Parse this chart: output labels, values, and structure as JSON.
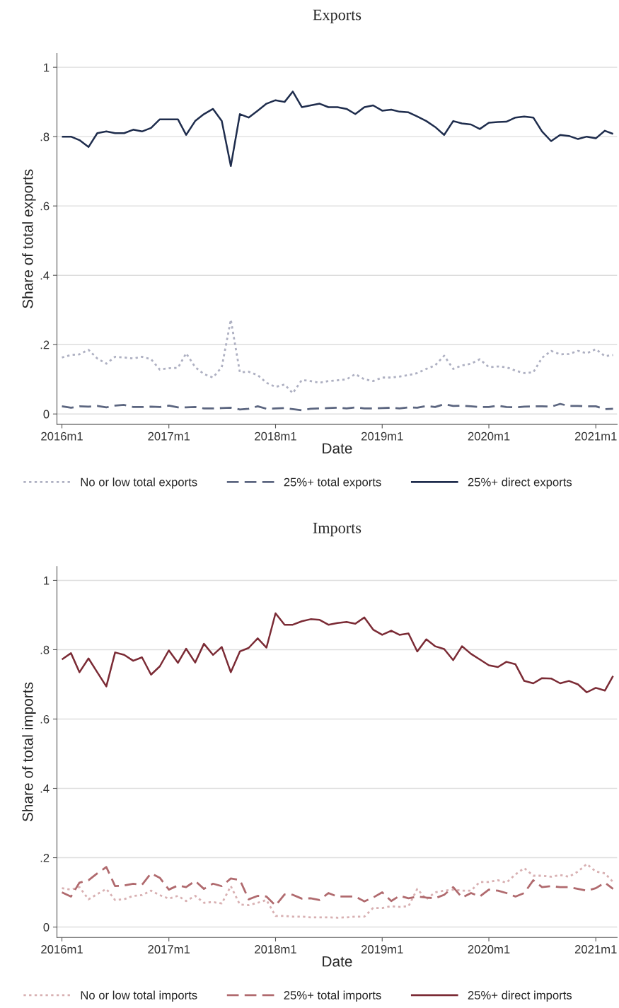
{
  "chart_data": [
    {
      "type": "line",
      "title": "Exports",
      "xlabel": "Date",
      "ylabel": "Share of total exports",
      "x": [
        "2016-01",
        "2016-02",
        "2016-03",
        "2016-04",
        "2016-05",
        "2016-06",
        "2016-07",
        "2016-08",
        "2016-09",
        "2016-10",
        "2016-11",
        "2016-12",
        "2017-01",
        "2017-02",
        "2017-03",
        "2017-04",
        "2017-05",
        "2017-06",
        "2017-07",
        "2017-08",
        "2017-09",
        "2017-10",
        "2017-11",
        "2017-12",
        "2018-01",
        "2018-02",
        "2018-03",
        "2018-04",
        "2018-05",
        "2018-06",
        "2018-07",
        "2018-08",
        "2018-09",
        "2018-10",
        "2018-11",
        "2018-12",
        "2019-01",
        "2019-02",
        "2019-03",
        "2019-04",
        "2019-05",
        "2019-06",
        "2019-07",
        "2019-08",
        "2019-09",
        "2019-10",
        "2019-11",
        "2019-12",
        "2020-01",
        "2020-02",
        "2020-03",
        "2020-04",
        "2020-05",
        "2020-06",
        "2020-07",
        "2020-08",
        "2020-09",
        "2020-10",
        "2020-11",
        "2020-12",
        "2021-01",
        "2021-02",
        "2021-03"
      ],
      "series": [
        {
          "name": "No or low total exports",
          "color": "#aeb0c2",
          "line_style": "dotted",
          "values": [
            0.163,
            0.17,
            0.172,
            0.185,
            0.16,
            0.145,
            0.165,
            0.163,
            0.16,
            0.165,
            0.158,
            0.128,
            0.132,
            0.133,
            0.175,
            0.135,
            0.115,
            0.105,
            0.135,
            0.272,
            0.12,
            0.122,
            0.112,
            0.09,
            0.078,
            0.085,
            0.06,
            0.098,
            0.095,
            0.09,
            0.095,
            0.097,
            0.1,
            0.115,
            0.1,
            0.095,
            0.105,
            0.105,
            0.108,
            0.112,
            0.118,
            0.13,
            0.14,
            0.168,
            0.13,
            0.14,
            0.145,
            0.158,
            0.135,
            0.137,
            0.135,
            0.125,
            0.118,
            0.12,
            0.162,
            0.182,
            0.172,
            0.173,
            0.182,
            0.175,
            0.187,
            0.167,
            0.17
          ]
        },
        {
          "name": "25%+ total exports",
          "color": "#5c6680",
          "line_style": "dashed",
          "values": [
            0.022,
            0.018,
            0.022,
            0.021,
            0.023,
            0.019,
            0.024,
            0.026,
            0.02,
            0.02,
            0.021,
            0.02,
            0.024,
            0.019,
            0.019,
            0.02,
            0.016,
            0.016,
            0.017,
            0.018,
            0.013,
            0.015,
            0.022,
            0.015,
            0.016,
            0.017,
            0.014,
            0.011,
            0.015,
            0.016,
            0.017,
            0.018,
            0.016,
            0.019,
            0.016,
            0.016,
            0.017,
            0.018,
            0.016,
            0.019,
            0.018,
            0.023,
            0.02,
            0.028,
            0.023,
            0.024,
            0.022,
            0.02,
            0.02,
            0.024,
            0.02,
            0.019,
            0.021,
            0.022,
            0.022,
            0.021,
            0.029,
            0.023,
            0.023,
            0.022,
            0.022,
            0.014,
            0.015
          ]
        },
        {
          "name": "25%+ direct exports",
          "color": "#1f2d4d",
          "line_style": "solid",
          "values": [
            0.8,
            0.8,
            0.79,
            0.77,
            0.81,
            0.815,
            0.81,
            0.81,
            0.82,
            0.815,
            0.825,
            0.85,
            0.85,
            0.85,
            0.805,
            0.845,
            0.865,
            0.88,
            0.845,
            0.715,
            0.865,
            0.855,
            0.875,
            0.895,
            0.905,
            0.9,
            0.93,
            0.885,
            0.89,
            0.895,
            0.885,
            0.885,
            0.88,
            0.865,
            0.885,
            0.89,
            0.875,
            0.878,
            0.872,
            0.87,
            0.858,
            0.845,
            0.828,
            0.805,
            0.845,
            0.838,
            0.835,
            0.822,
            0.84,
            0.842,
            0.843,
            0.855,
            0.858,
            0.855,
            0.815,
            0.787,
            0.805,
            0.802,
            0.793,
            0.8,
            0.795,
            0.817,
            0.808
          ]
        }
      ],
      "xlim": [
        "2015-12-15",
        "2021-03-15"
      ],
      "xticks": [
        {
          "value": "2016-01",
          "label": "2016m1"
        },
        {
          "value": "2017-01",
          "label": "2017m1"
        },
        {
          "value": "2018-01",
          "label": "2018m1"
        },
        {
          "value": "2019-01",
          "label": "2019m1"
        },
        {
          "value": "2020-01",
          "label": "2020m1"
        },
        {
          "value": "2021-01",
          "label": "2021m1"
        }
      ],
      "ylim": [
        -0.03,
        1.04
      ],
      "yticks": [
        0,
        {
          "value": 0.2,
          "label": ".2"
        },
        {
          "value": 0.4,
          "label": ".4"
        },
        {
          "value": 0.6,
          "label": ".6"
        },
        {
          "value": 0.8,
          "label": ".8"
        },
        1
      ],
      "grid": "y",
      "legend": "bottom"
    },
    {
      "type": "line",
      "title": "Imports",
      "xlabel": "Date",
      "ylabel": "Share of total imports",
      "x": [
        "2016-01",
        "2016-02",
        "2016-03",
        "2016-04",
        "2016-05",
        "2016-06",
        "2016-07",
        "2016-08",
        "2016-09",
        "2016-10",
        "2016-11",
        "2016-12",
        "2017-01",
        "2017-02",
        "2017-03",
        "2017-04",
        "2017-05",
        "2017-06",
        "2017-07",
        "2017-08",
        "2017-09",
        "2017-10",
        "2017-11",
        "2017-12",
        "2018-01",
        "2018-02",
        "2018-03",
        "2018-04",
        "2018-05",
        "2018-06",
        "2018-07",
        "2018-08",
        "2018-09",
        "2018-10",
        "2018-11",
        "2018-12",
        "2019-01",
        "2019-02",
        "2019-03",
        "2019-04",
        "2019-05",
        "2019-06",
        "2019-07",
        "2019-08",
        "2019-09",
        "2019-10",
        "2019-11",
        "2019-12",
        "2020-01",
        "2020-02",
        "2020-03",
        "2020-04",
        "2020-05",
        "2020-06",
        "2020-07",
        "2020-08",
        "2020-09",
        "2020-10",
        "2020-11",
        "2020-12",
        "2021-01",
        "2021-02",
        "2021-03"
      ],
      "series": [
        {
          "name": "No or low total imports",
          "color": "#d8b0b2",
          "line_style": "dotted",
          "values": [
            0.112,
            0.108,
            0.115,
            0.08,
            0.095,
            0.11,
            0.078,
            0.08,
            0.09,
            0.092,
            0.105,
            0.092,
            0.082,
            0.09,
            0.075,
            0.09,
            0.07,
            0.072,
            0.068,
            0.118,
            0.065,
            0.063,
            0.07,
            0.078,
            0.032,
            0.032,
            0.03,
            0.03,
            0.028,
            0.028,
            0.028,
            0.027,
            0.028,
            0.03,
            0.03,
            0.055,
            0.055,
            0.06,
            0.058,
            0.06,
            0.11,
            0.08,
            0.1,
            0.105,
            0.108,
            0.105,
            0.105,
            0.13,
            0.13,
            0.135,
            0.128,
            0.152,
            0.17,
            0.148,
            0.148,
            0.145,
            0.15,
            0.145,
            0.16,
            0.182,
            0.16,
            0.155,
            0.13
          ]
        },
        {
          "name": "25%+ total imports",
          "color": "#b06a6e",
          "line_style": "dashed",
          "values": [
            0.1,
            0.088,
            0.128,
            0.135,
            0.155,
            0.173,
            0.118,
            0.12,
            0.125,
            0.122,
            0.155,
            0.142,
            0.108,
            0.12,
            0.115,
            0.133,
            0.11,
            0.125,
            0.118,
            0.14,
            0.136,
            0.08,
            0.09,
            0.088,
            0.062,
            0.094,
            0.093,
            0.082,
            0.083,
            0.078,
            0.098,
            0.088,
            0.088,
            0.088,
            0.074,
            0.085,
            0.1,
            0.075,
            0.09,
            0.083,
            0.088,
            0.085,
            0.083,
            0.093,
            0.115,
            0.085,
            0.098,
            0.088,
            0.108,
            0.105,
            0.098,
            0.088,
            0.098,
            0.135,
            0.115,
            0.118,
            0.115,
            0.115,
            0.11,
            0.105,
            0.112,
            0.128,
            0.11
          ]
        },
        {
          "name": "25%+ direct imports",
          "color": "#7b2b35",
          "line_style": "solid",
          "values": [
            0.772,
            0.79,
            0.735,
            0.775,
            0.735,
            0.694,
            0.792,
            0.785,
            0.768,
            0.778,
            0.728,
            0.752,
            0.798,
            0.762,
            0.803,
            0.763,
            0.817,
            0.785,
            0.808,
            0.735,
            0.795,
            0.805,
            0.833,
            0.806,
            0.905,
            0.872,
            0.872,
            0.882,
            0.888,
            0.886,
            0.872,
            0.877,
            0.88,
            0.875,
            0.893,
            0.858,
            0.843,
            0.855,
            0.843,
            0.847,
            0.795,
            0.83,
            0.81,
            0.802,
            0.77,
            0.81,
            0.788,
            0.772,
            0.755,
            0.75,
            0.765,
            0.758,
            0.71,
            0.703,
            0.718,
            0.717,
            0.703,
            0.71,
            0.7,
            0.677,
            0.69,
            0.682,
            0.724
          ]
        }
      ],
      "xlim": [
        "2015-12-15",
        "2021-03-15"
      ],
      "xticks": [
        {
          "value": "2016-01",
          "label": "2016m1"
        },
        {
          "value": "2017-01",
          "label": "2017m1"
        },
        {
          "value": "2018-01",
          "label": "2018m1"
        },
        {
          "value": "2019-01",
          "label": "2019m1"
        },
        {
          "value": "2020-01",
          "label": "2020m1"
        },
        {
          "value": "2021-01",
          "label": "2021m1"
        }
      ],
      "ylim": [
        -0.03,
        1.04
      ],
      "yticks": [
        0,
        {
          "value": 0.2,
          "label": ".2"
        },
        {
          "value": 0.4,
          "label": ".4"
        },
        {
          "value": 0.6,
          "label": ".6"
        },
        {
          "value": 0.8,
          "label": ".8"
        },
        1
      ],
      "grid": "y",
      "legend": "bottom"
    }
  ]
}
